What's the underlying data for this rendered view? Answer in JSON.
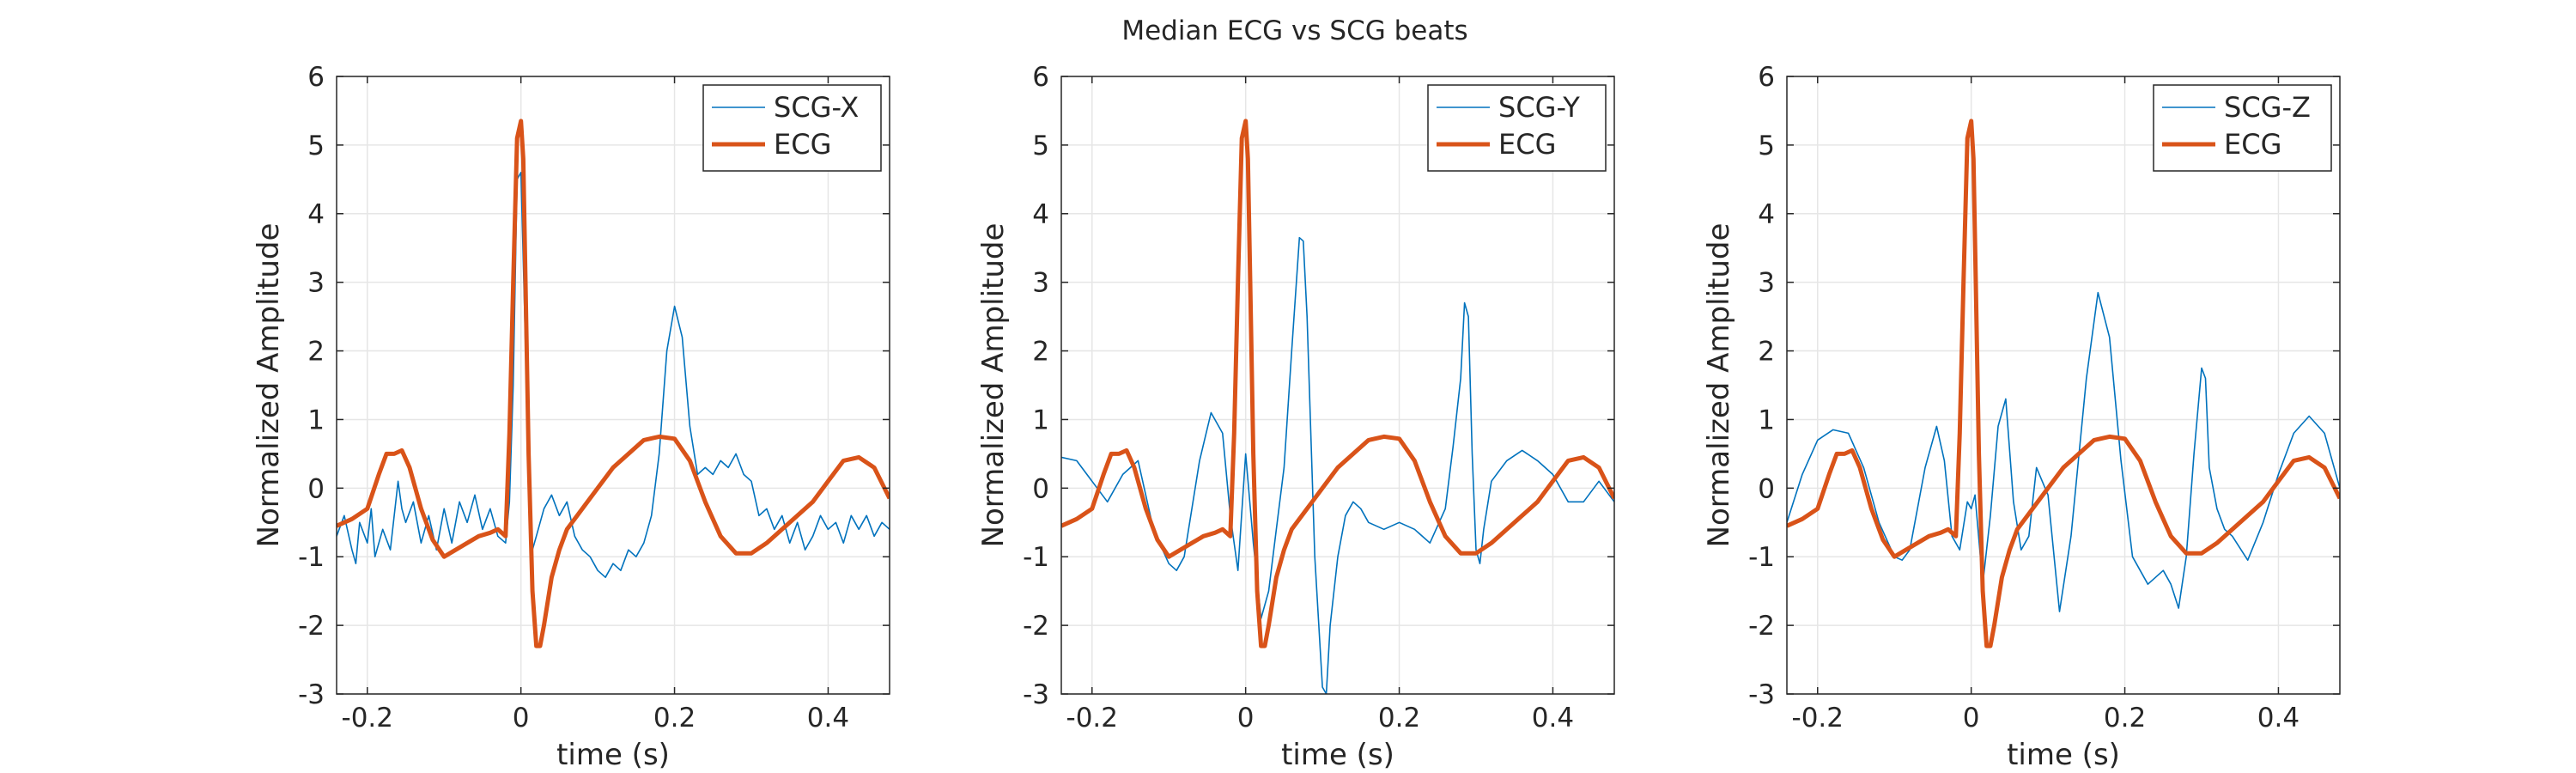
{
  "figure": {
    "title": "Median ECG vs SCG beats"
  },
  "colors": {
    "scg": "#0072BD",
    "ecg": "#D95319",
    "grid": "#e6e6e6",
    "axis": "#262626"
  },
  "chart_data": [
    {
      "type": "line",
      "xlabel": "time (s)",
      "ylabel": "Normalized Amplitude",
      "xlim": [
        -0.24,
        0.48
      ],
      "ylim": [
        -3,
        6
      ],
      "xticks": [
        -0.2,
        0,
        0.2,
        0.4
      ],
      "xtick_labels": [
        "-0.2",
        "0",
        "0.2",
        "0.4"
      ],
      "yticks": [
        -3,
        -2,
        -1,
        0,
        1,
        2,
        3,
        4,
        5,
        6
      ],
      "ytick_labels": [
        "-3",
        "-2",
        "-1",
        "0",
        "1",
        "2",
        "3",
        "4",
        "5",
        "6"
      ],
      "grid": true,
      "legend": "top-right",
      "series": [
        {
          "name": "SCG-X",
          "x": [
            -0.24,
            -0.23,
            -0.22,
            -0.215,
            -0.21,
            -0.2,
            -0.195,
            -0.19,
            -0.18,
            -0.17,
            -0.16,
            -0.155,
            -0.15,
            -0.14,
            -0.13,
            -0.12,
            -0.11,
            -0.1,
            -0.09,
            -0.08,
            -0.07,
            -0.06,
            -0.05,
            -0.04,
            -0.03,
            -0.02,
            -0.015,
            -0.01,
            -0.005,
            0,
            0.005,
            0.01,
            0.015,
            0.02,
            0.03,
            0.04,
            0.05,
            0.06,
            0.07,
            0.08,
            0.09,
            0.1,
            0.11,
            0.12,
            0.13,
            0.14,
            0.15,
            0.16,
            0.17,
            0.18,
            0.19,
            0.2,
            0.21,
            0.22,
            0.23,
            0.24,
            0.25,
            0.26,
            0.27,
            0.28,
            0.29,
            0.3,
            0.31,
            0.32,
            0.33,
            0.34,
            0.35,
            0.36,
            0.37,
            0.38,
            0.39,
            0.4,
            0.41,
            0.42,
            0.43,
            0.44,
            0.45,
            0.46,
            0.47,
            0.48
          ],
          "values": [
            -0.7,
            -0.4,
            -0.9,
            -1.1,
            -0.5,
            -0.8,
            -0.3,
            -1.0,
            -0.6,
            -0.9,
            0.1,
            -0.3,
            -0.5,
            -0.2,
            -0.8,
            -0.4,
            -0.9,
            -0.3,
            -0.8,
            -0.2,
            -0.5,
            -0.1,
            -0.6,
            -0.3,
            -0.7,
            -0.8,
            -0.2,
            1.5,
            4.5,
            4.6,
            2.5,
            0.3,
            -0.9,
            -0.7,
            -0.3,
            -0.1,
            -0.4,
            -0.2,
            -0.7,
            -0.9,
            -1.0,
            -1.2,
            -1.3,
            -1.1,
            -1.2,
            -0.9,
            -1.0,
            -0.8,
            -0.4,
            0.5,
            2.0,
            2.65,
            2.2,
            0.9,
            0.2,
            0.3,
            0.2,
            0.4,
            0.3,
            0.5,
            0.2,
            0.1,
            -0.4,
            -0.3,
            -0.6,
            -0.4,
            -0.8,
            -0.5,
            -0.9,
            -0.7,
            -0.4,
            -0.6,
            -0.5,
            -0.8,
            -0.4,
            -0.6,
            -0.4,
            -0.7,
            -0.5,
            -0.6
          ],
          "color": "#0072BD"
        },
        {
          "name": "ECG",
          "x": [
            -0.24,
            -0.22,
            -0.2,
            -0.185,
            -0.175,
            -0.165,
            -0.155,
            -0.145,
            -0.13,
            -0.115,
            -0.1,
            -0.085,
            -0.07,
            -0.055,
            -0.04,
            -0.03,
            -0.02,
            -0.015,
            -0.01,
            -0.005,
            0,
            0.003,
            0.006,
            0.01,
            0.015,
            0.02,
            0.025,
            0.03,
            0.04,
            0.05,
            0.06,
            0.08,
            0.1,
            0.12,
            0.14,
            0.16,
            0.18,
            0.2,
            0.22,
            0.24,
            0.26,
            0.28,
            0.3,
            0.32,
            0.34,
            0.36,
            0.38,
            0.4,
            0.42,
            0.44,
            0.46,
            0.48
          ],
          "values": [
            -0.55,
            -0.45,
            -0.3,
            0.2,
            0.5,
            0.5,
            0.55,
            0.3,
            -0.3,
            -0.75,
            -1.0,
            -0.9,
            -0.8,
            -0.7,
            -0.65,
            -0.6,
            -0.7,
            0.8,
            3.0,
            5.1,
            5.35,
            4.8,
            3.0,
            0.5,
            -1.5,
            -2.3,
            -2.3,
            -2.0,
            -1.3,
            -0.9,
            -0.6,
            -0.3,
            0.0,
            0.3,
            0.5,
            0.7,
            0.75,
            0.72,
            0.4,
            -0.2,
            -0.7,
            -0.95,
            -0.95,
            -0.8,
            -0.6,
            -0.4,
            -0.2,
            0.1,
            0.4,
            0.45,
            0.3,
            -0.15
          ],
          "color": "#D95319"
        }
      ]
    },
    {
      "type": "line",
      "xlabel": "time (s)",
      "ylabel": "Normalized Amplitude",
      "xlim": [
        -0.24,
        0.48
      ],
      "ylim": [
        -3,
        6
      ],
      "xticks": [
        -0.2,
        0,
        0.2,
        0.4
      ],
      "xtick_labels": [
        "-0.2",
        "0",
        "0.2",
        "0.4"
      ],
      "yticks": [
        -3,
        -2,
        -1,
        0,
        1,
        2,
        3,
        4,
        5,
        6
      ],
      "ytick_labels": [
        "-3",
        "-2",
        "-1",
        "0",
        "1",
        "2",
        "3",
        "4",
        "5",
        "6"
      ],
      "grid": true,
      "legend": "top-right",
      "series": [
        {
          "name": "SCG-Y",
          "x": [
            -0.24,
            -0.22,
            -0.2,
            -0.18,
            -0.16,
            -0.14,
            -0.12,
            -0.1,
            -0.09,
            -0.08,
            -0.06,
            -0.045,
            -0.03,
            -0.02,
            -0.01,
            0,
            0.01,
            0.02,
            0.03,
            0.04,
            0.05,
            0.06,
            0.07,
            0.075,
            0.08,
            0.09,
            0.1,
            0.105,
            0.11,
            0.12,
            0.13,
            0.14,
            0.15,
            0.16,
            0.18,
            0.2,
            0.22,
            0.24,
            0.26,
            0.27,
            0.28,
            0.285,
            0.29,
            0.295,
            0.3,
            0.305,
            0.31,
            0.32,
            0.34,
            0.36,
            0.38,
            0.4,
            0.42,
            0.44,
            0.46,
            0.48
          ],
          "values": [
            0.45,
            0.4,
            0.1,
            -0.2,
            0.2,
            0.4,
            -0.6,
            -1.1,
            -1.2,
            -1.0,
            0.4,
            1.1,
            0.8,
            -0.4,
            -1.2,
            0.5,
            -0.8,
            -1.9,
            -1.5,
            -0.6,
            0.3,
            2.0,
            3.65,
            3.6,
            2.5,
            -1.0,
            -2.9,
            -3.0,
            -2.0,
            -1.0,
            -0.4,
            -0.2,
            -0.3,
            -0.5,
            -0.6,
            -0.5,
            -0.6,
            -0.8,
            -0.3,
            0.6,
            1.6,
            2.7,
            2.5,
            0.5,
            -0.9,
            -1.1,
            -0.6,
            0.1,
            0.4,
            0.55,
            0.4,
            0.2,
            -0.2,
            -0.2,
            0.1,
            -0.2
          ],
          "color": "#0072BD"
        },
        {
          "name": "ECG",
          "x": [
            -0.24,
            -0.22,
            -0.2,
            -0.185,
            -0.175,
            -0.165,
            -0.155,
            -0.145,
            -0.13,
            -0.115,
            -0.1,
            -0.085,
            -0.07,
            -0.055,
            -0.04,
            -0.03,
            -0.02,
            -0.015,
            -0.01,
            -0.005,
            0,
            0.003,
            0.006,
            0.01,
            0.015,
            0.02,
            0.025,
            0.03,
            0.04,
            0.05,
            0.06,
            0.08,
            0.1,
            0.12,
            0.14,
            0.16,
            0.18,
            0.2,
            0.22,
            0.24,
            0.26,
            0.28,
            0.3,
            0.32,
            0.34,
            0.36,
            0.38,
            0.4,
            0.42,
            0.44,
            0.46,
            0.48
          ],
          "values": [
            -0.55,
            -0.45,
            -0.3,
            0.2,
            0.5,
            0.5,
            0.55,
            0.3,
            -0.3,
            -0.75,
            -1.0,
            -0.9,
            -0.8,
            -0.7,
            -0.65,
            -0.6,
            -0.7,
            0.8,
            3.0,
            5.1,
            5.35,
            4.8,
            3.0,
            0.5,
            -1.5,
            -2.3,
            -2.3,
            -2.0,
            -1.3,
            -0.9,
            -0.6,
            -0.3,
            0.0,
            0.3,
            0.5,
            0.7,
            0.75,
            0.72,
            0.4,
            -0.2,
            -0.7,
            -0.95,
            -0.95,
            -0.8,
            -0.6,
            -0.4,
            -0.2,
            0.1,
            0.4,
            0.45,
            0.3,
            -0.15
          ],
          "color": "#D95319"
        }
      ]
    },
    {
      "type": "line",
      "xlabel": "time (s)",
      "ylabel": "Normalized Amplitude",
      "xlim": [
        -0.24,
        0.48
      ],
      "ylim": [
        -3,
        6
      ],
      "xticks": [
        -0.2,
        0,
        0.2,
        0.4
      ],
      "xtick_labels": [
        "-0.2",
        "0",
        "0.2",
        "0.4"
      ],
      "yticks": [
        -3,
        -2,
        -1,
        0,
        1,
        2,
        3,
        4,
        5,
        6
      ],
      "ytick_labels": [
        "-3",
        "-2",
        "-1",
        "0",
        "1",
        "2",
        "3",
        "4",
        "5",
        "6"
      ],
      "grid": true,
      "legend": "top-right",
      "series": [
        {
          "name": "SCG-Z",
          "x": [
            -0.24,
            -0.22,
            -0.2,
            -0.18,
            -0.16,
            -0.14,
            -0.12,
            -0.1,
            -0.09,
            -0.08,
            -0.06,
            -0.045,
            -0.035,
            -0.025,
            -0.015,
            -0.005,
            0,
            0.005,
            0.015,
            0.025,
            0.035,
            0.045,
            0.055,
            0.065,
            0.075,
            0.085,
            0.1,
            0.115,
            0.13,
            0.15,
            0.165,
            0.18,
            0.195,
            0.21,
            0.23,
            0.25,
            0.26,
            0.27,
            0.28,
            0.29,
            0.3,
            0.305,
            0.31,
            0.32,
            0.33,
            0.34,
            0.36,
            0.38,
            0.4,
            0.42,
            0.44,
            0.46,
            0.48
          ],
          "values": [
            -0.5,
            0.2,
            0.7,
            0.85,
            0.8,
            0.3,
            -0.5,
            -1.0,
            -1.05,
            -0.9,
            0.3,
            0.9,
            0.4,
            -0.7,
            -0.9,
            -0.2,
            -0.3,
            -0.1,
            -1.4,
            -0.4,
            0.9,
            1.3,
            -0.2,
            -0.9,
            -0.7,
            0.3,
            -0.1,
            -1.8,
            -0.7,
            1.6,
            2.85,
            2.2,
            0.4,
            -1.0,
            -1.4,
            -1.2,
            -1.4,
            -1.75,
            -1.0,
            0.5,
            1.75,
            1.6,
            0.3,
            -0.3,
            -0.6,
            -0.7,
            -1.05,
            -0.5,
            0.2,
            0.8,
            1.05,
            0.8,
            0.0
          ],
          "color": "#0072BD"
        },
        {
          "name": "ECG",
          "x": [
            -0.24,
            -0.22,
            -0.2,
            -0.185,
            -0.175,
            -0.165,
            -0.155,
            -0.145,
            -0.13,
            -0.115,
            -0.1,
            -0.085,
            -0.07,
            -0.055,
            -0.04,
            -0.03,
            -0.02,
            -0.015,
            -0.01,
            -0.005,
            0,
            0.003,
            0.006,
            0.01,
            0.015,
            0.02,
            0.025,
            0.03,
            0.04,
            0.05,
            0.06,
            0.08,
            0.1,
            0.12,
            0.14,
            0.16,
            0.18,
            0.2,
            0.22,
            0.24,
            0.26,
            0.28,
            0.3,
            0.32,
            0.34,
            0.36,
            0.38,
            0.4,
            0.42,
            0.44,
            0.46,
            0.48
          ],
          "values": [
            -0.55,
            -0.45,
            -0.3,
            0.2,
            0.5,
            0.5,
            0.55,
            0.3,
            -0.3,
            -0.75,
            -1.0,
            -0.9,
            -0.8,
            -0.7,
            -0.65,
            -0.6,
            -0.7,
            0.8,
            3.0,
            5.1,
            5.35,
            4.8,
            3.0,
            0.5,
            -1.5,
            -2.3,
            -2.3,
            -2.0,
            -1.3,
            -0.9,
            -0.6,
            -0.3,
            0.0,
            0.3,
            0.5,
            0.7,
            0.75,
            0.72,
            0.4,
            -0.2,
            -0.7,
            -0.95,
            -0.95,
            -0.8,
            -0.6,
            -0.4,
            -0.2,
            0.1,
            0.4,
            0.45,
            0.3,
            -0.15
          ],
          "color": "#D95319"
        }
      ]
    }
  ]
}
